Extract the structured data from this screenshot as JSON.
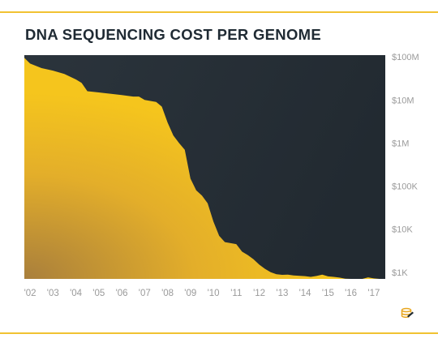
{
  "title": "DNA SEQUENCING COST PER GENOME",
  "colors": {
    "accent": "#f1c232",
    "plot_background": "#273038",
    "fill_top": "#f3c21b",
    "fill_bottom_left": "#b98a35",
    "text": "#1f2a33",
    "axis_text": "#9a9a9a"
  },
  "logo_icon": "coin-stack-icon",
  "chart_data": {
    "type": "area",
    "title": "DNA SEQUENCING COST PER GENOME",
    "xlabel": "",
    "ylabel": "",
    "y_scale": "log",
    "ylim": [
      700,
      110000000
    ],
    "xlim": [
      2001.75,
      2017.5
    ],
    "x_ticks": [
      2002,
      2003,
      2004,
      2005,
      2006,
      2007,
      2008,
      2009,
      2010,
      2011,
      2012,
      2013,
      2014,
      2015,
      2016,
      2017
    ],
    "x_tick_labels": [
      "'02",
      "'03",
      "'04",
      "'05",
      "'06",
      "'07",
      "'08",
      "'09",
      "'10",
      "'11",
      "'12",
      "'13",
      "'14",
      "'15",
      "'16",
      "'17"
    ],
    "y_ticks": [
      100000000,
      10000000,
      1000000,
      100000,
      10000,
      1000
    ],
    "y_tick_labels": [
      "$100M",
      "$10M",
      "$1M",
      "$100K",
      "$10K",
      "$1K"
    ],
    "grid": false,
    "legend": "none",
    "series": [
      {
        "x": [
          2001.75,
          2002.0,
          2002.5,
          2003.0,
          2003.5,
          2004.0,
          2004.25,
          2004.5,
          2005.0,
          2005.5,
          2006.0,
          2006.5,
          2006.75,
          2007.0,
          2007.5,
          2007.75,
          2008.0,
          2008.25,
          2008.5,
          2008.75,
          2009.0,
          2009.25,
          2009.5,
          2009.75,
          2010.0,
          2010.25,
          2010.5,
          2011.0,
          2011.25,
          2011.5,
          2011.75,
          2012.0,
          2012.25,
          2012.5,
          2012.75,
          2013.0,
          2013.25,
          2013.5,
          2014.0,
          2014.25,
          2014.5,
          2014.75,
          2015.0,
          2015.25,
          2015.5,
          2015.75,
          2016.0,
          2016.25,
          2016.5,
          2016.75,
          2017.0,
          2017.25,
          2017.5
        ],
        "y": [
          95000000,
          70000000,
          55000000,
          48000000,
          40000000,
          30000000,
          25000000,
          16000000,
          15000000,
          14000000,
          13000000,
          12000000,
          12000000,
          10000000,
          9000000,
          7000000,
          3000000,
          1500000,
          1000000,
          700000,
          150000,
          80000,
          60000,
          40000,
          15000,
          7000,
          5000,
          4500,
          3000,
          2500,
          2000,
          1500,
          1200,
          1000,
          900,
          870,
          880,
          840,
          810,
          780,
          820,
          880,
          800,
          780,
          750,
          710,
          700,
          700,
          700,
          760,
          720,
          700,
          700
        ]
      }
    ]
  }
}
